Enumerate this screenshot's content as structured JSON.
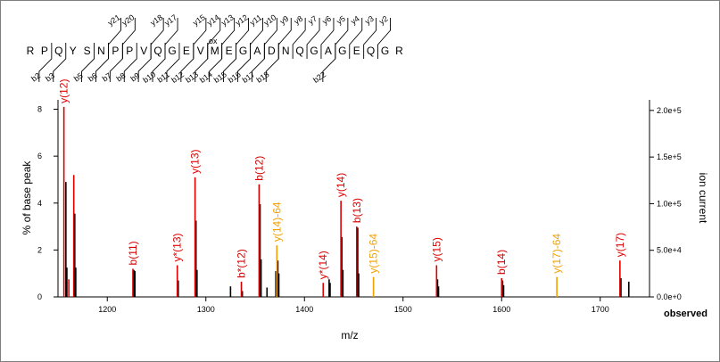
{
  "peptide": {
    "residues": [
      "R",
      "P",
      "Q",
      "Y",
      "S",
      "N",
      "P",
      "P",
      "V",
      "Q",
      "G",
      "E",
      "V",
      "M",
      "E",
      "G",
      "A",
      "D",
      "N",
      "Q",
      "G",
      "A",
      "G",
      "E",
      "Q",
      "G",
      "R"
    ],
    "modification_label": "ox",
    "y_labels": [
      "y21",
      "y20",
      "y18",
      "y17",
      "y15",
      "y14",
      "y13",
      "y12",
      "y11",
      "y10",
      "y9",
      "y8",
      "y7",
      "y6",
      "y5",
      "y4",
      "y3",
      "y2"
    ],
    "b_labels": [
      "b2",
      "b3",
      "b5",
      "b6",
      "b7",
      "b8",
      "b9",
      "b10",
      "b11",
      "b12",
      "b13",
      "b14",
      "b15",
      "b16",
      "b17",
      "b18",
      "b22"
    ]
  },
  "chart_data": {
    "type": "bar",
    "xlabel": "m/z",
    "ylabel": "% of base peak",
    "y2label": "ion current",
    "x_range": [
      1150,
      1750
    ],
    "y_range": [
      0,
      8.4
    ],
    "x_ticks": [
      "1200",
      "1300",
      "1400",
      "1500",
      "1600",
      "1700"
    ],
    "y_ticks": [
      "0",
      "2",
      "4",
      "6",
      "8"
    ],
    "y2_ticks": [
      "0.0e+0",
      "5.0e+4",
      "1.0e+5",
      "1.5e+5",
      "2.0e+5"
    ],
    "corner_label": "observed",
    "colors": {
      "y_ion": "#e00000",
      "b_ion": "#d40000",
      "neutral_loss": "#f0a000",
      "unassigned": "#000000"
    },
    "annotated_peaks": [
      {
        "label": "y(12)",
        "mz": 1156,
        "value": 8.1,
        "color": "#e00000"
      },
      {
        "label": "b(11)",
        "mz": 1226,
        "value": 1.2,
        "color": "#d40000"
      },
      {
        "label": "y*(13)",
        "mz": 1271,
        "value": 1.35,
        "color": "#e00000"
      },
      {
        "label": "y(13)",
        "mz": 1289,
        "value": 5.1,
        "color": "#e00000"
      },
      {
        "label": "b*(12)",
        "mz": 1336,
        "value": 0.65,
        "color": "#d40000"
      },
      {
        "label": "b(12)",
        "mz": 1354,
        "value": 4.8,
        "color": "#d40000"
      },
      {
        "label": "y(14)-64",
        "mz": 1372,
        "value": 2.2,
        "color": "#f0a000"
      },
      {
        "label": "y*(14)",
        "mz": 1419,
        "value": 0.6,
        "color": "#e00000"
      },
      {
        "label": "y(14)",
        "mz": 1437,
        "value": 4.1,
        "color": "#e00000"
      },
      {
        "label": "b(13)",
        "mz": 1453,
        "value": 3.0,
        "color": "#d40000"
      },
      {
        "label": "y(15)-64",
        "mz": 1470,
        "value": 0.85,
        "color": "#f0a000"
      },
      {
        "label": "y(15)",
        "mz": 1534,
        "value": 1.35,
        "color": "#e00000"
      },
      {
        "label": "b(14)",
        "mz": 1600,
        "value": 0.8,
        "color": "#d40000"
      },
      {
        "label": "y(17)-64",
        "mz": 1656,
        "value": 0.85,
        "color": "#f0a000"
      },
      {
        "label": "y(17)",
        "mz": 1720,
        "value": 1.55,
        "color": "#e00000"
      }
    ],
    "unlabeled_peaks": [
      {
        "mz": 1158,
        "value": 4.9,
        "color": "#000000"
      },
      {
        "mz": 1159,
        "value": 1.25,
        "color": "#000000"
      },
      {
        "mz": 1161,
        "value": 0.75,
        "color": "#e00000"
      },
      {
        "mz": 1166,
        "value": 5.2,
        "color": "#e00000"
      },
      {
        "mz": 1167,
        "value": 3.55,
        "color": "#000000"
      },
      {
        "mz": 1168,
        "value": 1.25,
        "color": "#000000"
      },
      {
        "mz": 1227,
        "value": 1.15,
        "color": "#000000"
      },
      {
        "mz": 1228,
        "value": 1.1,
        "color": "#000000"
      },
      {
        "mz": 1272,
        "value": 0.7,
        "color": "#000000"
      },
      {
        "mz": 1290,
        "value": 3.25,
        "color": "#000000"
      },
      {
        "mz": 1291,
        "value": 1.15,
        "color": "#000000"
      },
      {
        "mz": 1325,
        "value": 0.45,
        "color": "#000000"
      },
      {
        "mz": 1337,
        "value": 0.25,
        "color": "#000000"
      },
      {
        "mz": 1355,
        "value": 3.95,
        "color": "#000000"
      },
      {
        "mz": 1356,
        "value": 1.6,
        "color": "#000000"
      },
      {
        "mz": 1362,
        "value": 0.4,
        "color": "#000000"
      },
      {
        "mz": 1371,
        "value": 1.1,
        "color": "#000000"
      },
      {
        "mz": 1373,
        "value": 1.55,
        "color": "#000000"
      },
      {
        "mz": 1374,
        "value": 1.0,
        "color": "#000000"
      },
      {
        "mz": 1425,
        "value": 0.75,
        "color": "#000000"
      },
      {
        "mz": 1426,
        "value": 0.6,
        "color": "#000000"
      },
      {
        "mz": 1438,
        "value": 2.55,
        "color": "#000000"
      },
      {
        "mz": 1439,
        "value": 1.15,
        "color": "#000000"
      },
      {
        "mz": 1454,
        "value": 2.95,
        "color": "#000000"
      },
      {
        "mz": 1455,
        "value": 1.0,
        "color": "#000000"
      },
      {
        "mz": 1535,
        "value": 0.75,
        "color": "#000000"
      },
      {
        "mz": 1536,
        "value": 0.45,
        "color": "#000000"
      },
      {
        "mz": 1601,
        "value": 0.7,
        "color": "#000000"
      },
      {
        "mz": 1602,
        "value": 0.5,
        "color": "#000000"
      },
      {
        "mz": 1721,
        "value": 0.8,
        "color": "#000000"
      },
      {
        "mz": 1729,
        "value": 0.65,
        "color": "#000000"
      }
    ]
  }
}
